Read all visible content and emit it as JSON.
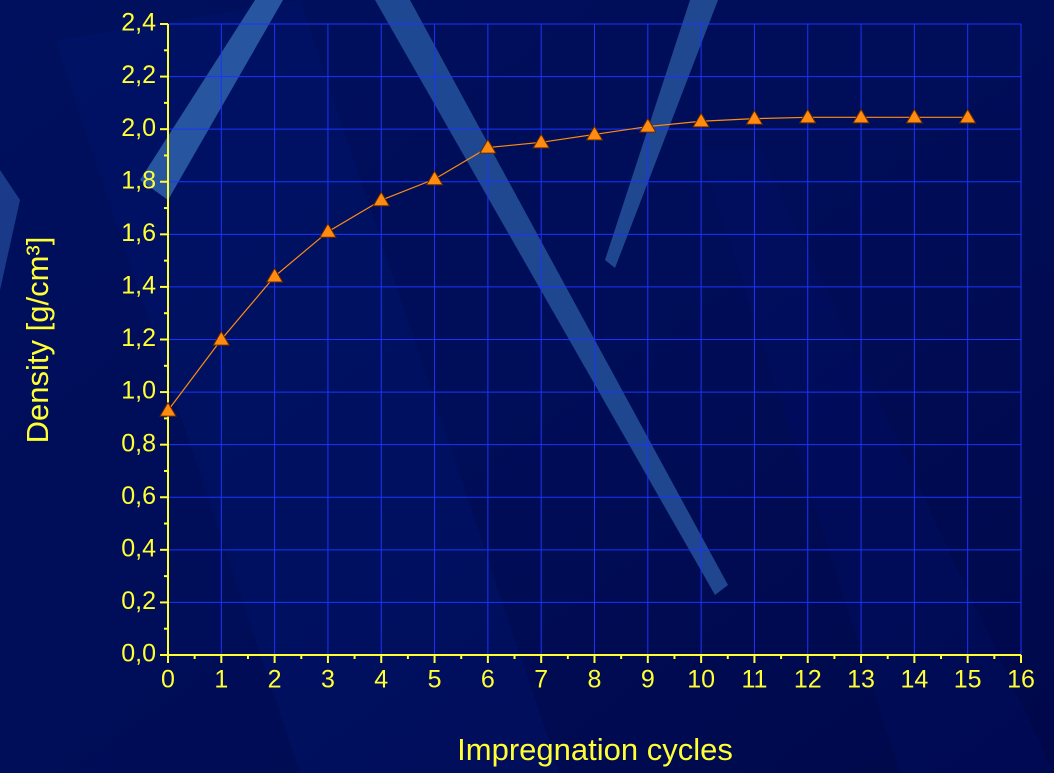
{
  "chart_data": {
    "type": "line",
    "x_label": "Impregnation cycles",
    "y_label": "Density [g/cm³]",
    "x": [
      0,
      1,
      2,
      3,
      4,
      5,
      6,
      7,
      8,
      9,
      10,
      11,
      12,
      13,
      14,
      15
    ],
    "values": [
      0.93,
      1.2,
      1.44,
      1.61,
      1.73,
      1.81,
      1.93,
      1.95,
      1.98,
      2.01,
      2.03,
      2.04,
      2.045,
      2.045,
      2.045,
      2.045
    ],
    "color": "#ff8c10",
    "xlim": [
      0,
      16
    ],
    "xticks": [
      0,
      1,
      2,
      3,
      4,
      5,
      6,
      7,
      8,
      9,
      10,
      11,
      12,
      13,
      14,
      15,
      16
    ],
    "ylim": [
      0,
      2.4
    ],
    "yticks": [
      {
        "value": 0,
        "label": "0,0"
      },
      {
        "value": 0.2,
        "label": "0,2"
      },
      {
        "value": 0.4,
        "label": "0,4"
      },
      {
        "value": 0.6,
        "label": "0,6"
      },
      {
        "value": 0.8,
        "label": "0,8"
      },
      {
        "value": 1.0,
        "label": "1,0"
      },
      {
        "value": 1.2,
        "label": "1,2"
      },
      {
        "value": 1.4,
        "label": "1,4"
      },
      {
        "value": 1.6,
        "label": "1,6"
      },
      {
        "value": 1.8,
        "label": "1,8"
      },
      {
        "value": 2.0,
        "label": "2,0"
      },
      {
        "value": 2.2,
        "label": "2,2"
      },
      {
        "value": 2.4,
        "label": "2,4"
      }
    ],
    "grid": true
  }
}
